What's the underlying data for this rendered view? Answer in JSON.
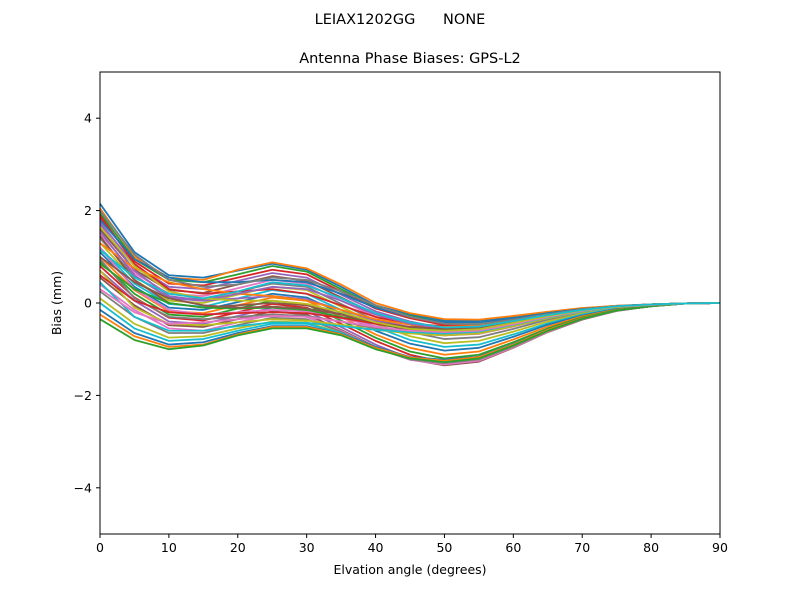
{
  "figure": {
    "suptitle": "LEIAX1202GG      NONE"
  },
  "chart_data": {
    "type": "line",
    "title": "Antenna Phase Biases: GPS-L2",
    "xlabel": "Elvation angle (degrees)",
    "ylabel": "Bias (mm)",
    "xlim": [
      0,
      90
    ],
    "ylim": [
      -5,
      5
    ],
    "xticks": [
      0,
      10,
      20,
      30,
      40,
      50,
      60,
      70,
      80,
      90
    ],
    "yticks": [
      -4,
      -2,
      0,
      2,
      4
    ],
    "xtick_labels": [
      "0",
      "10",
      "20",
      "30",
      "40",
      "50",
      "60",
      "70",
      "80",
      "90"
    ],
    "ytick_labels": [
      "−4",
      "−2",
      "0",
      "2",
      "4"
    ],
    "grid": false,
    "legend": "none",
    "x": [
      0,
      5,
      10,
      15,
      20,
      25,
      30,
      35,
      40,
      45,
      50,
      55,
      60,
      65,
      70,
      75,
      80,
      85,
      90
    ],
    "series_colors": [
      "#1f77b4",
      "#ff7f0e",
      "#2ca02c",
      "#d62728",
      "#9467bd",
      "#8c564b",
      "#e377c2",
      "#7f7f7f",
      "#bcbd22",
      "#17becf"
    ],
    "series": [
      {
        "values": [
          2.15,
          1.1,
          0.6,
          0.55,
          0.7,
          0.85,
          0.72,
          0.35,
          -0.05,
          -0.25,
          -0.38,
          -0.38,
          -0.3,
          -0.2,
          -0.12,
          -0.06,
          -0.03,
          -0.01,
          0
        ]
      },
      {
        "values": [
          2.05,
          1.0,
          0.55,
          0.5,
          0.72,
          0.88,
          0.75,
          0.4,
          0.0,
          -0.22,
          -0.35,
          -0.36,
          -0.28,
          -0.19,
          -0.11,
          -0.06,
          -0.03,
          -0.01,
          0
        ]
      },
      {
        "values": [
          1.95,
          0.95,
          0.5,
          0.45,
          0.62,
          0.8,
          0.68,
          0.3,
          -0.08,
          -0.28,
          -0.42,
          -0.42,
          -0.33,
          -0.22,
          -0.13,
          -0.07,
          -0.03,
          -0.01,
          0
        ]
      },
      {
        "values": [
          1.85,
          0.9,
          0.42,
          0.38,
          0.55,
          0.72,
          0.62,
          0.25,
          -0.12,
          -0.33,
          -0.48,
          -0.47,
          -0.37,
          -0.24,
          -0.14,
          -0.07,
          -0.03,
          -0.01,
          0
        ]
      },
      {
        "values": [
          1.75,
          0.82,
          0.35,
          0.3,
          0.48,
          0.65,
          0.55,
          0.18,
          -0.18,
          -0.4,
          -0.55,
          -0.53,
          -0.41,
          -0.27,
          -0.16,
          -0.08,
          -0.04,
          -0.01,
          0
        ]
      },
      {
        "values": [
          1.6,
          0.72,
          0.28,
          0.22,
          0.4,
          0.58,
          0.48,
          0.12,
          -0.24,
          -0.47,
          -0.62,
          -0.6,
          -0.46,
          -0.3,
          -0.17,
          -0.09,
          -0.04,
          -0.01,
          0
        ]
      },
      {
        "values": [
          1.5,
          0.65,
          0.2,
          0.15,
          0.32,
          0.5,
          0.42,
          0.05,
          -0.3,
          -0.55,
          -0.7,
          -0.67,
          -0.51,
          -0.33,
          -0.19,
          -0.09,
          -0.04,
          -0.01,
          0
        ]
      },
      {
        "values": [
          1.4,
          0.58,
          0.12,
          0.08,
          0.25,
          0.42,
          0.35,
          -0.02,
          -0.38,
          -0.63,
          -0.78,
          -0.74,
          -0.56,
          -0.36,
          -0.21,
          -0.1,
          -0.04,
          -0.01,
          0
        ]
      },
      {
        "values": [
          1.3,
          0.5,
          0.05,
          0.0,
          0.18,
          0.35,
          0.28,
          -0.08,
          -0.45,
          -0.72,
          -0.87,
          -0.82,
          -0.62,
          -0.4,
          -0.23,
          -0.11,
          -0.05,
          -0.01,
          0
        ]
      },
      {
        "values": [
          1.2,
          0.42,
          -0.02,
          -0.08,
          0.1,
          0.28,
          0.2,
          -0.15,
          -0.52,
          -0.8,
          -0.95,
          -0.9,
          -0.68,
          -0.44,
          -0.25,
          -0.12,
          -0.05,
          -0.01,
          0
        ]
      },
      {
        "values": [
          1.1,
          0.35,
          -0.1,
          -0.15,
          0.02,
          0.2,
          0.12,
          -0.22,
          -0.6,
          -0.88,
          -1.03,
          -0.97,
          -0.73,
          -0.47,
          -0.27,
          -0.13,
          -0.05,
          -0.01,
          0
        ]
      },
      {
        "values": [
          1.0,
          0.28,
          -0.18,
          -0.22,
          -0.05,
          0.12,
          0.05,
          -0.3,
          -0.68,
          -0.97,
          -1.12,
          -1.05,
          -0.79,
          -0.51,
          -0.29,
          -0.14,
          -0.06,
          -0.01,
          0
        ]
      },
      {
        "values": [
          0.9,
          0.2,
          -0.25,
          -0.3,
          -0.12,
          0.05,
          -0.03,
          -0.38,
          -0.75,
          -1.05,
          -1.2,
          -1.12,
          -0.85,
          -0.55,
          -0.31,
          -0.15,
          -0.06,
          -0.01,
          0
        ]
      },
      {
        "values": [
          0.8,
          0.12,
          -0.32,
          -0.38,
          -0.2,
          -0.02,
          -0.1,
          -0.45,
          -0.82,
          -1.12,
          -1.28,
          -1.2,
          -0.9,
          -0.58,
          -0.33,
          -0.16,
          -0.06,
          -0.01,
          0
        ]
      },
      {
        "values": [
          0.7,
          0.05,
          -0.4,
          -0.45,
          -0.28,
          -0.1,
          -0.18,
          -0.52,
          -0.9,
          -1.2,
          -1.33,
          -1.25,
          -0.95,
          -0.62,
          -0.35,
          -0.17,
          -0.07,
          -0.01,
          0
        ]
      },
      {
        "values": [
          0.55,
          -0.05,
          -0.48,
          -0.52,
          -0.35,
          -0.18,
          -0.25,
          -0.58,
          -0.95,
          -1.22,
          -1.35,
          -1.27,
          -0.97,
          -0.63,
          -0.36,
          -0.17,
          -0.07,
          -0.01,
          0
        ]
      },
      {
        "values": [
          0.4,
          -0.15,
          -0.55,
          -0.6,
          -0.42,
          -0.25,
          -0.3,
          -0.6,
          -0.97,
          -1.23,
          -1.33,
          -1.25,
          -0.96,
          -0.62,
          -0.35,
          -0.17,
          -0.07,
          -0.01,
          0
        ]
      },
      {
        "values": [
          0.25,
          -0.3,
          -0.65,
          -0.65,
          -0.48,
          -0.32,
          -0.35,
          -0.62,
          -0.98,
          -1.22,
          -1.3,
          -1.22,
          -0.94,
          -0.61,
          -0.35,
          -0.17,
          -0.07,
          -0.01,
          0
        ]
      },
      {
        "values": [
          0.1,
          -0.45,
          -0.75,
          -0.72,
          -0.55,
          -0.4,
          -0.42,
          -0.65,
          -0.97,
          -1.2,
          -1.27,
          -1.2,
          -0.92,
          -0.6,
          -0.34,
          -0.16,
          -0.07,
          -0.01,
          0
        ]
      },
      {
        "values": [
          0.0,
          -0.55,
          -0.82,
          -0.78,
          -0.6,
          -0.45,
          -0.45,
          -0.65,
          -0.95,
          -1.18,
          -1.25,
          -1.18,
          -0.9,
          -0.59,
          -0.34,
          -0.16,
          -0.07,
          -0.01,
          0
        ]
      },
      {
        "values": [
          -0.15,
          -0.65,
          -0.9,
          -0.85,
          -0.65,
          -0.5,
          -0.5,
          -0.67,
          -0.95,
          -1.17,
          -1.23,
          -1.16,
          -0.89,
          -0.58,
          -0.33,
          -0.16,
          -0.07,
          -0.01,
          0
        ]
      },
      {
        "values": [
          -0.25,
          -0.72,
          -0.95,
          -0.9,
          -0.68,
          -0.52,
          -0.52,
          -0.68,
          -0.97,
          -1.18,
          -1.25,
          -1.17,
          -0.9,
          -0.58,
          -0.33,
          -0.16,
          -0.07,
          -0.01,
          0
        ]
      },
      {
        "values": [
          -0.35,
          -0.8,
          -1.0,
          -0.92,
          -0.7,
          -0.55,
          -0.55,
          -0.7,
          -1.0,
          -1.2,
          -1.28,
          -1.2,
          -0.92,
          -0.6,
          -0.34,
          -0.16,
          -0.07,
          -0.01,
          0
        ]
      },
      {
        "values": [
          1.9,
          0.85,
          0.3,
          0.2,
          0.25,
          0.3,
          0.2,
          -0.05,
          -0.3,
          -0.45,
          -0.5,
          -0.48,
          -0.37,
          -0.24,
          -0.14,
          -0.07,
          -0.03,
          -0.01,
          0
        ]
      },
      {
        "values": [
          1.7,
          0.7,
          0.15,
          0.05,
          0.1,
          0.15,
          0.08,
          -0.15,
          -0.38,
          -0.52,
          -0.57,
          -0.54,
          -0.41,
          -0.27,
          -0.15,
          -0.08,
          -0.03,
          -0.01,
          0
        ]
      },
      {
        "values": [
          1.45,
          0.5,
          0.0,
          -0.1,
          -0.05,
          0.0,
          -0.05,
          -0.25,
          -0.45,
          -0.58,
          -0.63,
          -0.59,
          -0.45,
          -0.29,
          -0.17,
          -0.08,
          -0.04,
          -0.01,
          0
        ]
      },
      {
        "values": [
          1.2,
          0.3,
          -0.15,
          -0.25,
          -0.2,
          -0.15,
          -0.18,
          -0.33,
          -0.5,
          -0.62,
          -0.67,
          -0.63,
          -0.48,
          -0.31,
          -0.18,
          -0.09,
          -0.04,
          -0.01,
          0
        ]
      },
      {
        "values": [
          0.95,
          0.1,
          -0.3,
          -0.35,
          -0.3,
          -0.25,
          -0.28,
          -0.4,
          -0.55,
          -0.65,
          -0.7,
          -0.66,
          -0.5,
          -0.33,
          -0.19,
          -0.09,
          -0.04,
          -0.01,
          0
        ]
      },
      {
        "values": [
          0.7,
          -0.1,
          -0.45,
          -0.48,
          -0.42,
          -0.35,
          -0.38,
          -0.47,
          -0.58,
          -0.66,
          -0.7,
          -0.66,
          -0.5,
          -0.33,
          -0.19,
          -0.09,
          -0.04,
          -0.01,
          0
        ]
      },
      {
        "values": [
          0.45,
          -0.3,
          -0.6,
          -0.6,
          -0.5,
          -0.42,
          -0.43,
          -0.5,
          -0.58,
          -0.63,
          -0.66,
          -0.62,
          -0.47,
          -0.31,
          -0.18,
          -0.09,
          -0.04,
          -0.01,
          0
        ]
      },
      {
        "values": [
          1.8,
          0.95,
          0.55,
          0.45,
          0.45,
          0.5,
          0.45,
          0.2,
          -0.1,
          -0.3,
          -0.42,
          -0.42,
          -0.33,
          -0.22,
          -0.13,
          -0.07,
          -0.03,
          -0.01,
          0
        ]
      },
      {
        "values": [
          1.3,
          0.75,
          0.45,
          0.3,
          0.2,
          0.15,
          0.05,
          -0.15,
          -0.35,
          -0.47,
          -0.52,
          -0.49,
          -0.38,
          -0.25,
          -0.14,
          -0.07,
          -0.03,
          -0.01,
          0
        ]
      },
      {
        "values": [
          0.85,
          0.3,
          0.0,
          -0.1,
          -0.12,
          -0.1,
          -0.15,
          -0.3,
          -0.45,
          -0.55,
          -0.58,
          -0.55,
          -0.42,
          -0.28,
          -0.16,
          -0.08,
          -0.03,
          -0.01,
          0
        ]
      },
      {
        "values": [
          0.6,
          0.05,
          -0.2,
          -0.25,
          -0.22,
          -0.2,
          -0.22,
          -0.32,
          -0.45,
          -0.52,
          -0.55,
          -0.52,
          -0.4,
          -0.26,
          -0.15,
          -0.07,
          -0.03,
          -0.01,
          0
        ]
      },
      {
        "values": [
          1.55,
          0.6,
          0.1,
          0.05,
          0.2,
          0.35,
          0.3,
          0.05,
          -0.25,
          -0.45,
          -0.55,
          -0.53,
          -0.41,
          -0.27,
          -0.15,
          -0.08,
          -0.03,
          -0.01,
          0
        ]
      },
      {
        "values": [
          1.0,
          0.45,
          0.1,
          -0.05,
          -0.1,
          -0.08,
          -0.12,
          -0.25,
          -0.42,
          -0.52,
          -0.56,
          -0.53,
          -0.4,
          -0.26,
          -0.15,
          -0.07,
          -0.03,
          -0.01,
          0
        ]
      },
      {
        "values": [
          0.3,
          -0.2,
          -0.45,
          -0.42,
          -0.35,
          -0.28,
          -0.3,
          -0.4,
          -0.52,
          -0.6,
          -0.63,
          -0.6,
          -0.46,
          -0.3,
          -0.17,
          -0.08,
          -0.04,
          -0.01,
          0
        ]
      },
      {
        "values": [
          2.0,
          1.05,
          0.5,
          0.35,
          0.4,
          0.55,
          0.5,
          0.25,
          -0.05,
          -0.3,
          -0.45,
          -0.46,
          -0.36,
          -0.24,
          -0.14,
          -0.07,
          -0.03,
          -0.01,
          0
        ]
      },
      {
        "values": [
          1.65,
          0.8,
          0.25,
          0.1,
          0.05,
          0.05,
          -0.02,
          -0.2,
          -0.42,
          -0.56,
          -0.6,
          -0.57,
          -0.43,
          -0.28,
          -0.16,
          -0.08,
          -0.03,
          -0.01,
          0
        ]
      },
      {
        "values": [
          1.15,
          0.55,
          0.2,
          0.1,
          0.25,
          0.45,
          0.38,
          0.1,
          -0.22,
          -0.42,
          -0.53,
          -0.51,
          -0.39,
          -0.26,
          -0.15,
          -0.07,
          -0.03,
          -0.01,
          0
        ]
      }
    ]
  }
}
